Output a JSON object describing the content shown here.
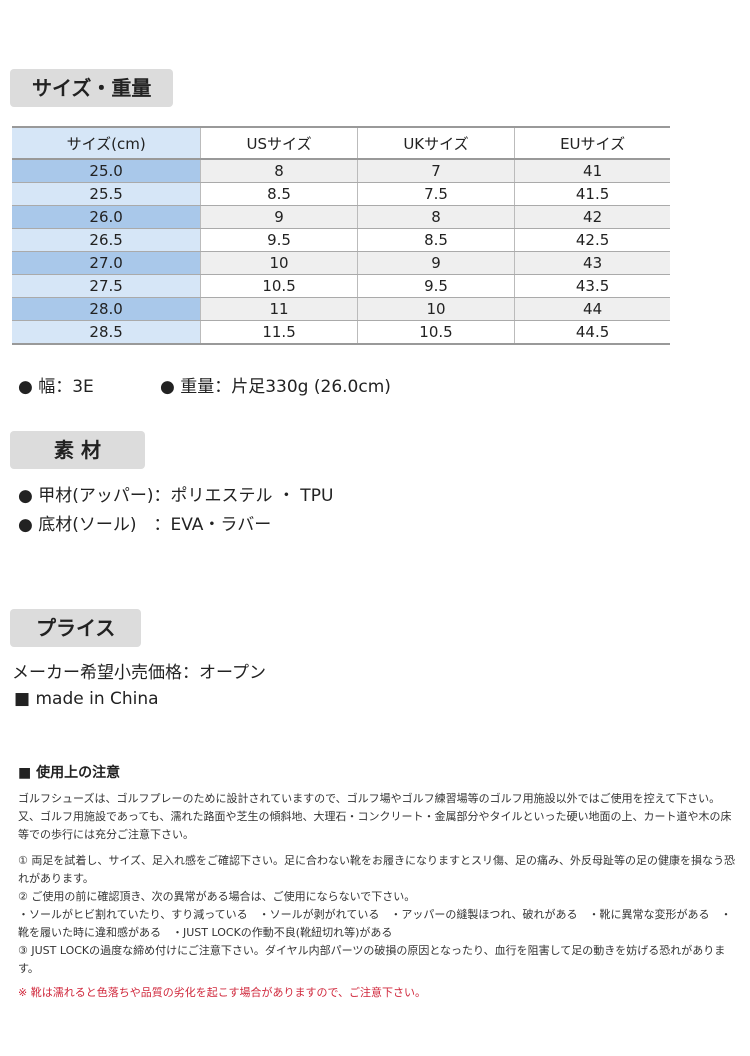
{
  "size_section": {
    "title": "サイズ・重量",
    "headers": [
      "サイズ(cm)",
      "USサイズ",
      "UKサイズ",
      "EUサイズ"
    ],
    "rows": [
      [
        "25.0",
        "8",
        "7",
        "41"
      ],
      [
        "25.5",
        "8.5",
        "7.5",
        "41.5"
      ],
      [
        "26.0",
        "9",
        "8",
        "42"
      ],
      [
        "26.5",
        "9.5",
        "8.5",
        "42.5"
      ],
      [
        "27.0",
        "10",
        "9",
        "43"
      ],
      [
        "27.5",
        "10.5",
        "9.5",
        "43.5"
      ],
      [
        "28.0",
        "11",
        "10",
        "44"
      ],
      [
        "28.5",
        "11.5",
        "10.5",
        "44.5"
      ]
    ],
    "width": "● 幅：3E",
    "weight": "● 重量：片足330g (26.0cm)"
  },
  "material_section": {
    "title": "素 材",
    "upper": "● 甲材(アッパー)：ポリエステル ・ TPU",
    "sole": "● 底材(ソール)　：EVA・ラバー"
  },
  "price_section": {
    "title": "プライス",
    "price": "メーカー希望小売価格：オープン",
    "origin": "■ made in China"
  },
  "notes": {
    "title": "■ 使用上の注意",
    "intro": "ゴルフシューズは、ゴルフプレーのために設計されていますので、ゴルフ場やゴルフ練習場等のゴルフ用施設以外ではご使用を控えて下さい。又、ゴルフ用施設であっても、濡れた路面や芝生の傾斜地、大理石・コンクリート・金属部分やタイルといった硬い地面の上、カート道や木の床等での歩行には充分ご注意下さい。",
    "n1": "① 両足を試着し、サイズ、足入れ感をご確認下さい。足に合わない靴をお履きになりますとスリ傷、足の痛み、外反母趾等の足の健康を損なう恐れがあります。",
    "n2": "② ご使用の前に確認頂き、次の異常がある場合は、ご使用にならないで下さい。",
    "n2_list": "・ソールがヒビ割れていたり、すり減っている　・ソールが剥がれている　・アッパーの縫製ほつれ、破れがある　・靴に異常な変形がある　・靴を履いた時に違和感がある　・JUST LOCKの作動不良(靴紐切れ等)がある",
    "n3": "③ JUST LOCKの過度な締め付けにご注意下さい。ダイヤル内部パーツの破損の原因となったり、血行を阻害して足の動きを妨げる恐れがあります。",
    "warning": "※ 靴は濡れると色落ちや品質の劣化を起こす場合がありますので、ご注意下さい。"
  },
  "colors": {
    "header_gray": "#dcdcdc",
    "size_col_blue": "#a9c8ea",
    "size_col_light": "#d6e6f7",
    "warning_red": "#d0283c"
  }
}
